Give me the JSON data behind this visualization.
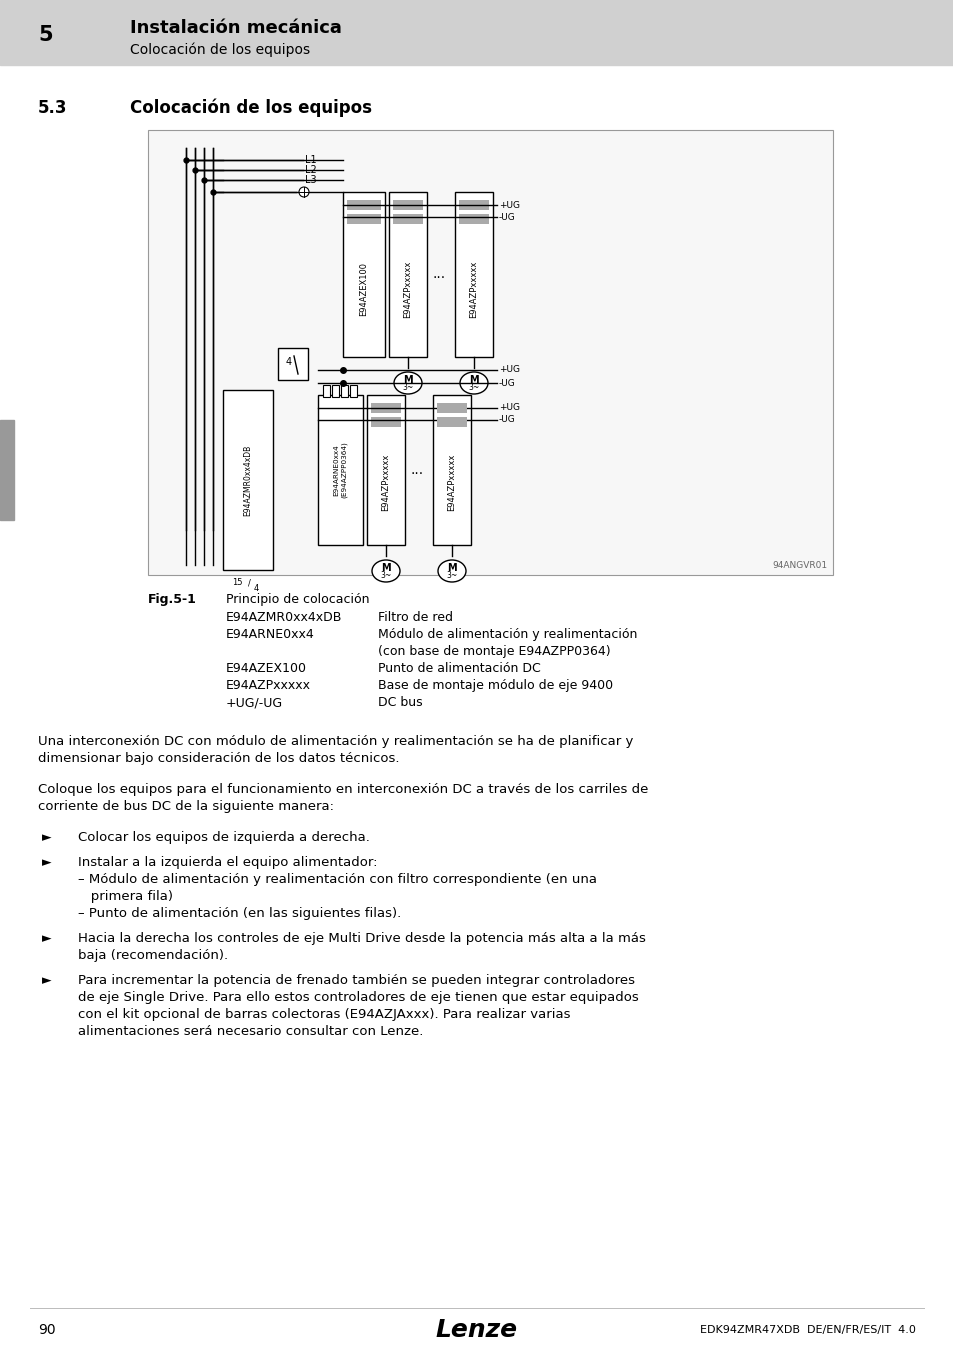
{
  "page_bg": "#e8e8e8",
  "content_bg": "#ffffff",
  "header_bg": "#d0d0d0",
  "header_number": "5",
  "header_title": "Instalación mecánica",
  "header_subtitle": "Colocación de los equipos",
  "section_number": "5.3",
  "section_title": "Colocación de los equipos",
  "figure_label": "Fig.5-1",
  "figure_caption": "Principio de colocación",
  "figure_ref": "94ANGVR01",
  "legend_items": [
    [
      "E94AZMR0xx4xDB",
      "Filtro de red"
    ],
    [
      "E94ARNE0xx4",
      "Módulo de alimentación y realimentación"
    ],
    [
      "",
      "(con base de montaje E94AZPP0364)"
    ],
    [
      "E94AZEX100",
      "Punto de alimentación DC"
    ],
    [
      "E94AZPxxxxx",
      "Base de montaje módulo de eje 9400"
    ],
    [
      "+UG/-UG",
      "DC bus"
    ]
  ],
  "paragraph1": "Una interconexión DC con módulo de alimentación y realimentación se ha de planificar y\ndimensionar bajo consideración de los datos técnicos.",
  "paragraph2": "Coloque los equipos para el funcionamiento en interconexión DC a través de los carriles de\ncorriente de bus DC de la siguiente manera:",
  "bullet_arrow": "►",
  "bullets": [
    [
      "Colocar los equipos de izquierda a derecha."
    ],
    [
      "Instalar a la izquierda el equipo alimentador:",
      "– Módulo de alimentación y realimentación con filtro correspondiente (en una",
      "   primera fila)",
      "– Punto de alimentación (en las siguientes filas)."
    ],
    [
      "Hacia la derecha los controles de eje Multi Drive desde la potencia más alta a la más",
      "baja (recomendación)."
    ],
    [
      "Para incrementar la potencia de frenado también se pueden integrar controladores",
      "de eje Single Drive. Para ello estos controladores de eje tienen que estar equipados",
      "con el kit opcional de barras colectoras (E94AZJAxxx). Para realizar varias",
      "alimentaciones será necesario consultar con Lenze."
    ]
  ],
  "footer_page": "90",
  "footer_brand": "Lenze",
  "footer_doc": "EDK94ZMR47XDB  DE/EN/FR/ES/IT  4.0"
}
